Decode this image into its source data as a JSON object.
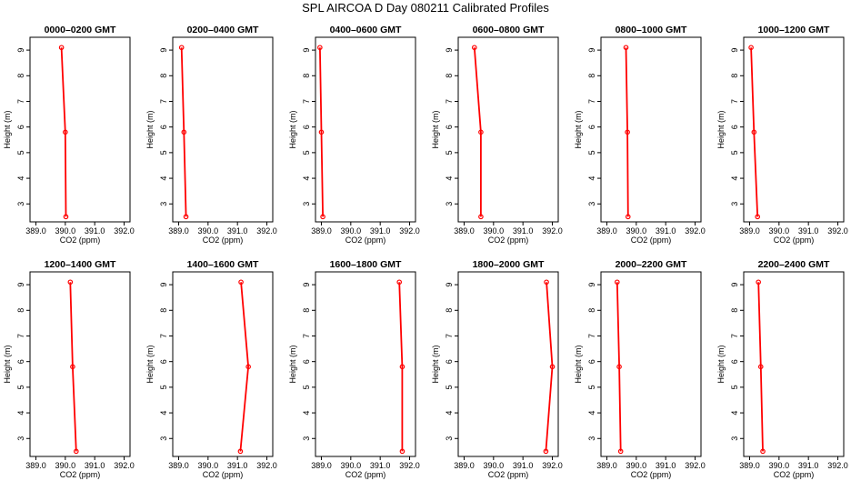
{
  "title": "SPL AIRCOA D  Day 080211  Calibrated Profiles",
  "colors": {
    "profile": "#ff0000",
    "axis": "#000000"
  },
  "chart_data": [
    {
      "type": "line",
      "title": "0000–0200 GMT",
      "xlabel": "CO2 (ppm)",
      "ylabel": "Height (m)",
      "xlim": [
        388.8,
        392.2
      ],
      "ylim": [
        2.3,
        9.5
      ],
      "xticks": [
        389.0,
        390.0,
        391.0,
        392.0
      ],
      "xticklabels": [
        "389.0",
        "390.0",
        "391.0",
        "392.0"
      ],
      "yticks": [
        3,
        4,
        5,
        6,
        7,
        8,
        9
      ],
      "series": [
        {
          "x": [
            389.87,
            390.0,
            390.02
          ],
          "y": [
            9.1,
            5.8,
            2.5
          ]
        }
      ]
    },
    {
      "type": "line",
      "title": "0200–0400 GMT",
      "xlabel": "CO2 (ppm)",
      "ylabel": "Height (m)",
      "xlim": [
        388.8,
        392.2
      ],
      "ylim": [
        2.3,
        9.5
      ],
      "xticks": [
        389.0,
        390.0,
        391.0,
        392.0
      ],
      "xticklabels": [
        "389.0",
        "390.0",
        "391.0",
        "392.0"
      ],
      "yticks": [
        3,
        4,
        5,
        6,
        7,
        8,
        9
      ],
      "series": [
        {
          "x": [
            389.1,
            389.18,
            389.25
          ],
          "y": [
            9.1,
            5.8,
            2.5
          ]
        }
      ]
    },
    {
      "type": "line",
      "title": "0400–0600 GMT",
      "xlabel": "CO2 (ppm)",
      "ylabel": "Height (m)",
      "xlim": [
        388.8,
        392.2
      ],
      "ylim": [
        2.3,
        9.5
      ],
      "xticks": [
        389.0,
        390.0,
        391.0,
        392.0
      ],
      "xticklabels": [
        "389.0",
        "390.0",
        "391.0",
        "392.0"
      ],
      "yticks": [
        3,
        4,
        5,
        6,
        7,
        8,
        9
      ],
      "series": [
        {
          "x": [
            388.95,
            389.0,
            389.05
          ],
          "y": [
            9.1,
            5.8,
            2.5
          ]
        }
      ]
    },
    {
      "type": "line",
      "title": "0600–0800 GMT",
      "xlabel": "CO2 (ppm)",
      "ylabel": "Height (m)",
      "xlim": [
        388.8,
        392.2
      ],
      "ylim": [
        2.3,
        9.5
      ],
      "xticks": [
        389.0,
        390.0,
        391.0,
        392.0
      ],
      "xticklabels": [
        "389.0",
        "390.0",
        "391.0",
        "392.0"
      ],
      "yticks": [
        3,
        4,
        5,
        6,
        7,
        8,
        9
      ],
      "series": [
        {
          "x": [
            389.35,
            389.57,
            389.57
          ],
          "y": [
            9.1,
            5.8,
            2.5
          ]
        }
      ]
    },
    {
      "type": "line",
      "title": "0800–1000 GMT",
      "xlabel": "CO2 (ppm)",
      "ylabel": "Height (m)",
      "xlim": [
        388.8,
        392.2
      ],
      "ylim": [
        2.3,
        9.5
      ],
      "xticks": [
        389.0,
        390.0,
        391.0,
        392.0
      ],
      "xticklabels": [
        "389.0",
        "390.0",
        "391.0",
        "392.0"
      ],
      "yticks": [
        3,
        4,
        5,
        6,
        7,
        8,
        9
      ],
      "series": [
        {
          "x": [
            389.65,
            389.7,
            389.72
          ],
          "y": [
            9.1,
            5.8,
            2.5
          ]
        }
      ]
    },
    {
      "type": "line",
      "title": "1000–1200 GMT",
      "xlabel": "CO2 (ppm)",
      "ylabel": "Height (m)",
      "xlim": [
        388.8,
        392.2
      ],
      "ylim": [
        2.3,
        9.5
      ],
      "xticks": [
        389.0,
        390.0,
        391.0,
        392.0
      ],
      "xticklabels": [
        "389.0",
        "390.0",
        "391.0",
        "392.0"
      ],
      "yticks": [
        3,
        4,
        5,
        6,
        7,
        8,
        9
      ],
      "series": [
        {
          "x": [
            389.05,
            389.15,
            389.27
          ],
          "y": [
            9.1,
            5.8,
            2.5
          ]
        }
      ]
    },
    {
      "type": "line",
      "title": "1200–1400 GMT",
      "xlabel": "CO2 (ppm)",
      "ylabel": "Height (m)",
      "xlim": [
        388.8,
        392.2
      ],
      "ylim": [
        2.3,
        9.5
      ],
      "xticks": [
        389.0,
        390.0,
        391.0,
        392.0
      ],
      "xticklabels": [
        "389.0",
        "390.0",
        "391.0",
        "392.0"
      ],
      "yticks": [
        3,
        4,
        5,
        6,
        7,
        8,
        9
      ],
      "series": [
        {
          "x": [
            390.17,
            390.25,
            390.37
          ],
          "y": [
            9.1,
            5.8,
            2.5
          ]
        }
      ]
    },
    {
      "type": "line",
      "title": "1400–1600 GMT",
      "xlabel": "CO2 (ppm)",
      "ylabel": "Height (m)",
      "xlim": [
        388.8,
        392.2
      ],
      "ylim": [
        2.3,
        9.5
      ],
      "xticks": [
        389.0,
        390.0,
        391.0,
        392.0
      ],
      "xticklabels": [
        "389.0",
        "390.0",
        "391.0",
        "392.0"
      ],
      "yticks": [
        3,
        4,
        5,
        6,
        7,
        8,
        9
      ],
      "series": [
        {
          "x": [
            391.12,
            391.37,
            391.1
          ],
          "y": [
            9.1,
            5.8,
            2.5
          ]
        }
      ]
    },
    {
      "type": "line",
      "title": "1600–1800 GMT",
      "xlabel": "CO2 (ppm)",
      "ylabel": "Height (m)",
      "xlim": [
        388.8,
        392.2
      ],
      "ylim": [
        2.3,
        9.5
      ],
      "xticks": [
        389.0,
        390.0,
        391.0,
        392.0
      ],
      "xticklabels": [
        "389.0",
        "390.0",
        "391.0",
        "392.0"
      ],
      "yticks": [
        3,
        4,
        5,
        6,
        7,
        8,
        9
      ],
      "series": [
        {
          "x": [
            391.65,
            391.75,
            391.75
          ],
          "y": [
            9.1,
            5.8,
            2.5
          ]
        }
      ]
    },
    {
      "type": "line",
      "title": "1800–2000 GMT",
      "xlabel": "CO2 (ppm)",
      "ylabel": "Height (m)",
      "xlim": [
        388.8,
        392.2
      ],
      "ylim": [
        2.3,
        9.5
      ],
      "xticks": [
        389.0,
        390.0,
        391.0,
        392.0
      ],
      "xticklabels": [
        "389.0",
        "390.0",
        "391.0",
        "392.0"
      ],
      "yticks": [
        3,
        4,
        5,
        6,
        7,
        8,
        9
      ],
      "series": [
        {
          "x": [
            391.8,
            392.0,
            391.78
          ],
          "y": [
            9.1,
            5.8,
            2.5
          ]
        }
      ]
    },
    {
      "type": "line",
      "title": "2000–2200 GMT",
      "xlabel": "CO2 (ppm)",
      "ylabel": "Height (m)",
      "xlim": [
        388.8,
        392.2
      ],
      "ylim": [
        2.3,
        9.5
      ],
      "xticks": [
        389.0,
        390.0,
        391.0,
        392.0
      ],
      "xticklabels": [
        "389.0",
        "390.0",
        "391.0",
        "392.0"
      ],
      "yticks": [
        3,
        4,
        5,
        6,
        7,
        8,
        9
      ],
      "series": [
        {
          "x": [
            389.35,
            389.42,
            389.47
          ],
          "y": [
            9.1,
            5.8,
            2.5
          ]
        }
      ]
    },
    {
      "type": "line",
      "title": "2200–2400 GMT",
      "xlabel": "CO2 (ppm)",
      "ylabel": "Height (m)",
      "xlim": [
        388.8,
        392.2
      ],
      "ylim": [
        2.3,
        9.5
      ],
      "xticks": [
        389.0,
        390.0,
        391.0,
        392.0
      ],
      "xticklabels": [
        "389.0",
        "390.0",
        "391.0",
        "392.0"
      ],
      "yticks": [
        3,
        4,
        5,
        6,
        7,
        8,
        9
      ],
      "series": [
        {
          "x": [
            389.3,
            389.38,
            389.45
          ],
          "y": [
            9.1,
            5.8,
            2.5
          ]
        }
      ]
    }
  ]
}
